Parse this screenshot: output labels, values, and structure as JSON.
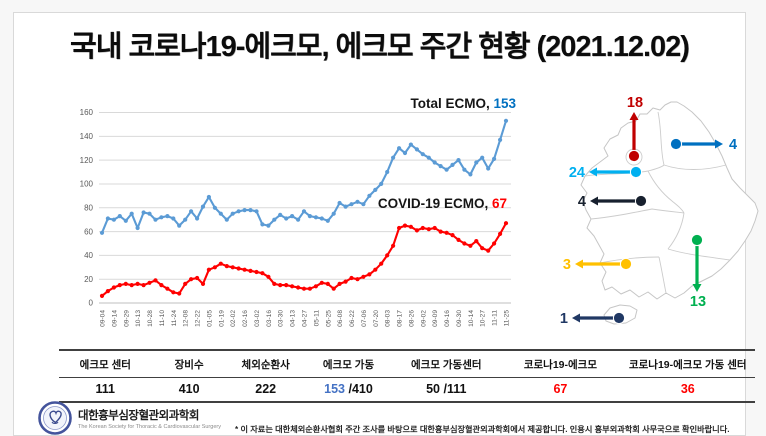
{
  "title": "국내 코로나19-에크모, 에크모 주간 현황 (2021.12.02)",
  "chart_data": {
    "type": "line",
    "title": "",
    "xlabel": "",
    "ylabel": "",
    "ylim": [
      0,
      160
    ],
    "yticks": [
      0,
      20,
      40,
      60,
      80,
      100,
      120,
      140,
      160
    ],
    "grid": true,
    "legend_position": "inline-annotations",
    "x_tick_labels": [
      "09-04",
      "09-14",
      "09-29",
      "10-13",
      "10-28",
      "11-10",
      "11-24",
      "12-08",
      "12-22",
      "01-05",
      "01-19",
      "02-02",
      "02-16",
      "03-02",
      "03-16",
      "03-30",
      "04-13",
      "04-27",
      "05-11",
      "05-25",
      "06-08",
      "06-22",
      "07-06",
      "07-20",
      "08-03",
      "08-17",
      "08-26",
      "09-02",
      "09-09",
      "09-16",
      "09-30",
      "10-14",
      "10-27",
      "11-11",
      "11-25"
    ],
    "points_per_label": 2,
    "series": [
      {
        "name": "Total ECMO",
        "color": "#5B9BD5",
        "final_value": 153,
        "values": [
          59,
          71,
          70,
          73,
          69,
          75,
          63,
          76,
          75,
          70,
          72,
          73,
          71,
          65,
          70,
          77,
          71,
          81,
          89,
          80,
          75,
          70,
          75,
          77,
          78,
          78,
          77,
          66,
          65,
          70,
          74,
          71,
          73,
          70,
          77,
          73,
          72,
          71,
          69,
          75,
          84,
          81,
          83,
          85,
          83,
          90,
          95,
          100,
          110,
          122,
          130,
          126,
          133,
          129,
          125,
          122,
          118,
          115,
          112,
          116,
          120,
          112,
          108,
          118,
          122,
          113,
          121,
          137,
          153
        ]
      },
      {
        "name": "COVID-19 ECMO",
        "color": "#FF0000",
        "final_value": 67,
        "values": [
          6,
          10,
          13,
          15,
          16,
          15,
          16,
          15,
          17,
          19,
          15,
          12,
          9,
          8,
          16,
          20,
          21,
          16,
          28,
          30,
          33,
          31,
          30,
          29,
          28,
          27,
          26,
          25,
          22,
          16,
          15,
          15,
          14,
          13,
          12,
          12,
          14,
          17,
          16,
          12,
          16,
          18,
          21,
          20,
          22,
          24,
          28,
          33,
          40,
          48,
          63,
          65,
          64,
          61,
          63,
          62,
          63,
          60,
          59,
          57,
          53,
          50,
          48,
          52,
          46,
          44,
          50,
          58,
          67
        ]
      }
    ],
    "annotations": [
      {
        "label": "Total ECMO,",
        "value": "153",
        "value_color": "#0070C0"
      },
      {
        "label": "COVID-19 ECMO,",
        "value": "67",
        "value_color": "#FF0000"
      }
    ]
  },
  "map": {
    "regions": [
      {
        "name": "seoul",
        "label": "18",
        "color": "#C00000",
        "dot": [
          620,
          143
        ],
        "tip": [
          620,
          100
        ],
        "dir": "up"
      },
      {
        "name": "gangwon",
        "label": "4",
        "color": "#0070C0",
        "dot": [
          662,
          131
        ],
        "tip": [
          708,
          131
        ],
        "dir": "right"
      },
      {
        "name": "gyeonggi",
        "label": "24",
        "color": "#00B0F0",
        "dot": [
          622,
          159
        ],
        "tip": [
          576,
          159
        ],
        "dir": "left"
      },
      {
        "name": "chungcheong",
        "label": "4",
        "color": "#17202E",
        "dot": [
          627,
          188
        ],
        "tip": [
          577,
          188
        ],
        "dir": "left"
      },
      {
        "name": "jeolla",
        "label": "3",
        "color": "#FFC000",
        "dot": [
          612,
          251
        ],
        "tip": [
          562,
          251
        ],
        "dir": "left"
      },
      {
        "name": "gyeongsang",
        "label": "13",
        "color": "#00B050",
        "dot": [
          683,
          227
        ],
        "tip": [
          683,
          278
        ],
        "dir": "down"
      },
      {
        "name": "jeju",
        "label": "1",
        "color": "#203864",
        "dot": [
          605,
          305
        ],
        "tip": [
          559,
          305
        ],
        "dir": "left"
      }
    ]
  },
  "table": {
    "columns": [
      {
        "header": "에크모 센터",
        "width": 13.3,
        "value_parts": [
          {
            "text": "111",
            "color": "#111111"
          }
        ]
      },
      {
        "header": "장비수",
        "width": 10.8,
        "value_parts": [
          {
            "text": "410",
            "color": "#111111"
          }
        ]
      },
      {
        "header": "체외순환사",
        "width": 11.2,
        "value_parts": [
          {
            "text": "222",
            "color": "#111111"
          }
        ]
      },
      {
        "header": "에크모 가동",
        "width": 12.6,
        "value_parts": [
          {
            "text": "153",
            "color": "#4472C4"
          },
          {
            "text": " /410",
            "color": "#111111"
          }
        ]
      },
      {
        "header": "에크모 가동센터",
        "width": 15.5,
        "value_parts": [
          {
            "text": "50 /111",
            "color": "#111111"
          }
        ]
      },
      {
        "header": "코로나19-에크모",
        "width": 17.3,
        "value_parts": [
          {
            "text": "67",
            "color": "#FF0000"
          }
        ]
      },
      {
        "header": "코로나19-에크모 가동 센터",
        "width": 19.3,
        "value_parts": [
          {
            "text": "36",
            "color": "#FF0000"
          }
        ]
      }
    ]
  },
  "footer": {
    "org_name_ko": "대한흉부심장혈관외과학회",
    "org_name_en": "The Korean Society for Thoracic & Cardiovascular Surgery",
    "note": "* 이 자료는 대한체외순환사협회 주간 조사를 바탕으로 대한흉부심장혈관외과학회에서 제공합니다. 인용시 흉부외과학회 사무국으로 확인바랍니다."
  }
}
